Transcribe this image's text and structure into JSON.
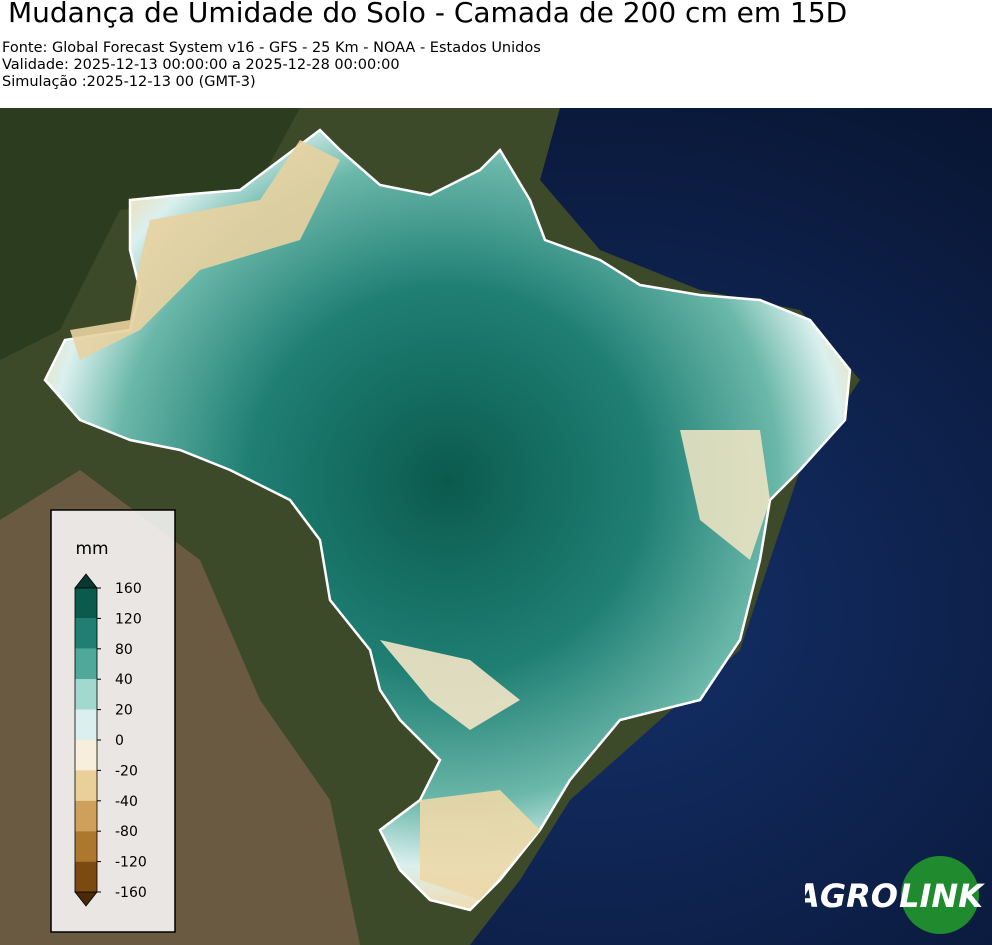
{
  "header": {
    "title": "Mudança de Umidade do Solo - Camada de 200 cm em 15D",
    "lines": [
      "Fonte: Global Forecast System v16 - GFS - 25 Km - NOAA - Estados Unidos",
      "Validade: 2025-12-13 00:00:00 a 2025-12-28 00:00:00",
      "Simulação :2025-12-13 00 (GMT-3)"
    ]
  },
  "colorbar": {
    "unit": "mm",
    "ticks": [
      160,
      120,
      80,
      40,
      20,
      0,
      -20,
      -40,
      -80,
      -120,
      -160
    ],
    "colors": [
      "#08382f",
      "#0b5a4e",
      "#1f7f73",
      "#4fa89a",
      "#a3d8cf",
      "#dbf0ee",
      "#f7efdc",
      "#e9cf98",
      "#cf9f5c",
      "#ad772e",
      "#7a4a10",
      "#4a2a05"
    ]
  },
  "logo": {
    "left": "AGRO",
    "right": "LINK"
  }
}
